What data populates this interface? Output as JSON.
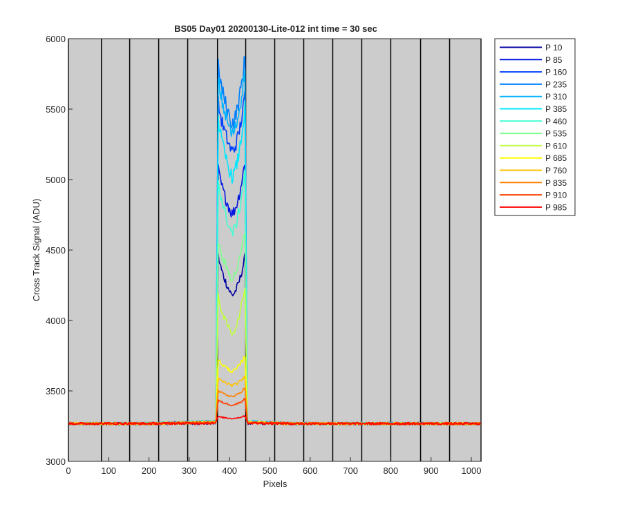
{
  "chart_data": {
    "type": "line",
    "title": "BS05 Day01 20200130-Lite-012 int time = 30 sec",
    "xlabel": "Pixels",
    "ylabel": "Cross Track Signal (ADU)",
    "xlim": [
      0,
      1024
    ],
    "ylim": [
      3000,
      6000
    ],
    "xticks": [
      0,
      100,
      200,
      300,
      400,
      500,
      600,
      700,
      800,
      900,
      1000
    ],
    "yticks": [
      3000,
      3500,
      4000,
      4500,
      5000,
      5500,
      6000
    ],
    "vertical_lines_x": [
      0,
      82,
      152,
      224,
      296,
      370,
      440,
      512,
      584,
      656,
      728,
      800,
      874,
      946,
      1024
    ],
    "background_color": "#cccccc",
    "grid": false,
    "legend_position": "outside-top-right",
    "signal_region_x": [
      370,
      440
    ],
    "series": [
      {
        "name": "P 10",
        "color": "#0000a0",
        "baseline": 3268,
        "left_peak": 4520,
        "right_peak": 4480,
        "valley": 4180
      },
      {
        "name": "P 85",
        "color": "#0015e0",
        "baseline": 3285,
        "left_peak": 5140,
        "right_peak": 5170,
        "valley": 4760
      },
      {
        "name": "P 160",
        "color": "#0042ff",
        "baseline": 3290,
        "left_peak": 5620,
        "right_peak": 5640,
        "valley": 5200
      },
      {
        "name": "P 235",
        "color": "#0080ff",
        "baseline": 3292,
        "left_peak": 5890,
        "right_peak": 5925,
        "valley": 5400
      },
      {
        "name": "P 310",
        "color": "#00b4ff",
        "baseline": 3292,
        "left_peak": 5800,
        "right_peak": 5840,
        "valley": 5320
      },
      {
        "name": "P 385",
        "color": "#00e8ff",
        "baseline": 3290,
        "left_peak": 5520,
        "right_peak": 5560,
        "valley": 5020
      },
      {
        "name": "P 460",
        "color": "#40ffd0",
        "baseline": 3288,
        "left_peak": 5080,
        "right_peak": 5120,
        "valley": 4620
      },
      {
        "name": "P 535",
        "color": "#80ff90",
        "baseline": 3286,
        "left_peak": 4620,
        "right_peak": 4680,
        "valley": 4300
      },
      {
        "name": "P 610",
        "color": "#c0ff40",
        "baseline": 3284,
        "left_peak": 4220,
        "right_peak": 4280,
        "valley": 3910
      },
      {
        "name": "P 685",
        "color": "#ffff00",
        "baseline": 3282,
        "left_peak": 3740,
        "right_peak": 3760,
        "valley": 3640
      },
      {
        "name": "P 760",
        "color": "#ffc000",
        "baseline": 3280,
        "left_peak": 3600,
        "right_peak": 3610,
        "valley": 3540
      },
      {
        "name": "P 835",
        "color": "#ff8000",
        "baseline": 3278,
        "left_peak": 3510,
        "right_peak": 3530,
        "valley": 3460
      },
      {
        "name": "P 910",
        "color": "#ff4000",
        "baseline": 3276,
        "left_peak": 3440,
        "right_peak": 3450,
        "valley": 3400
      },
      {
        "name": "P 985",
        "color": "#ff0000",
        "baseline": 3272,
        "left_peak": 3320,
        "right_peak": 3325,
        "valley": 3305
      }
    ]
  }
}
